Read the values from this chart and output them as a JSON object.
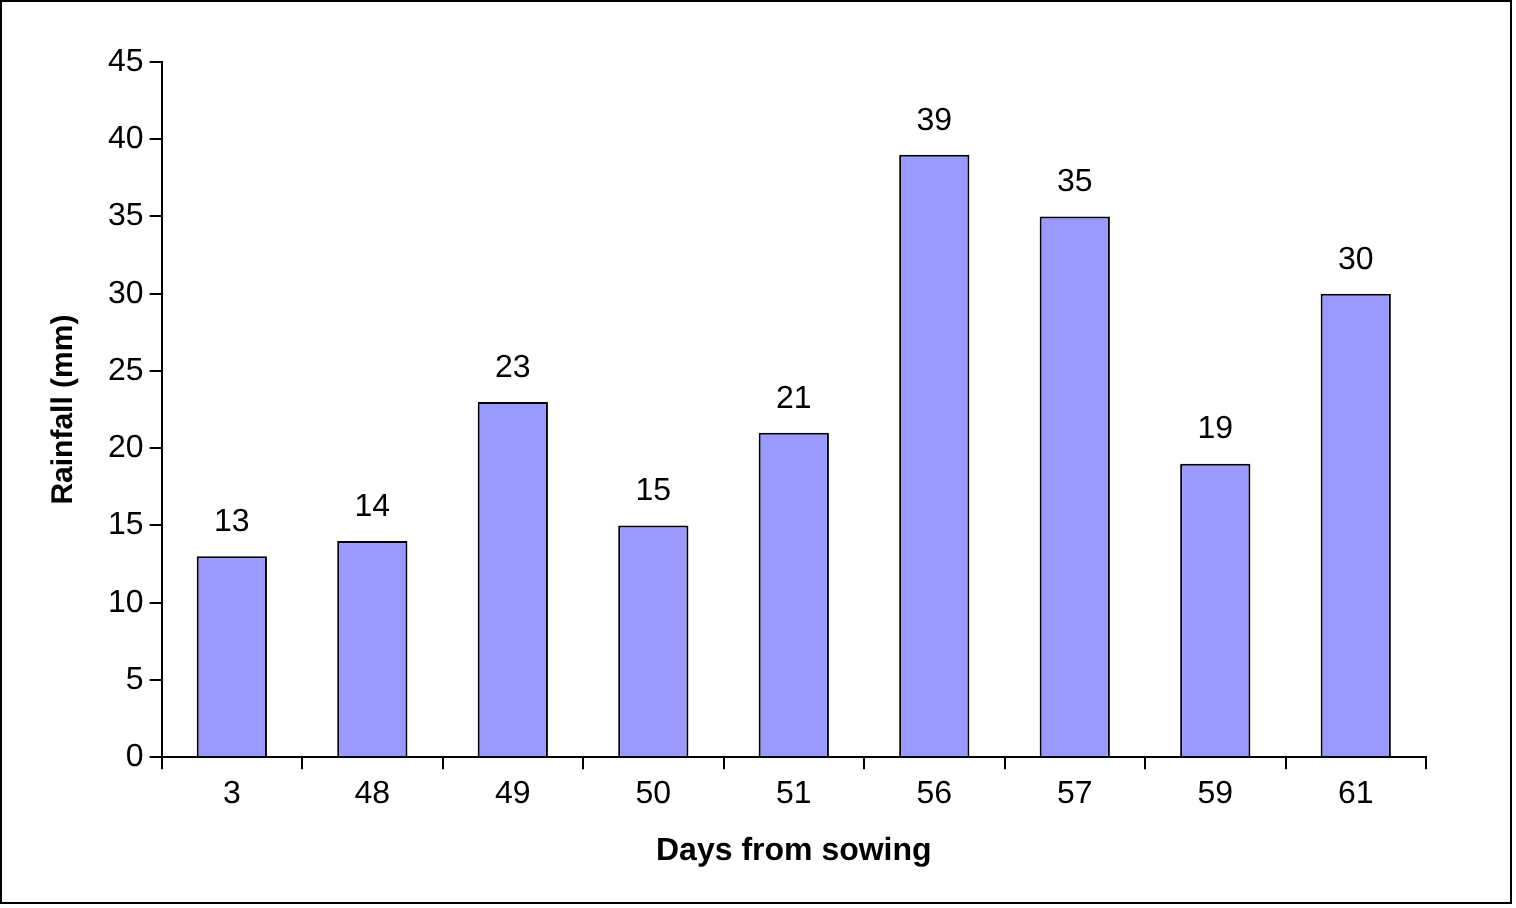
{
  "chart_data": {
    "type": "bar",
    "xlabel": "Days from sowing",
    "ylabel": "Rainfall (mm)",
    "categories": [
      "3",
      "48",
      "49",
      "50",
      "51",
      "56",
      "57",
      "59",
      "61"
    ],
    "values": [
      13,
      14,
      23,
      15,
      21,
      39,
      35,
      19,
      30
    ],
    "color": "#9999ff",
    "ylim": [
      0,
      45
    ],
    "yticks": [
      0,
      5,
      10,
      15,
      20,
      25,
      30,
      35,
      40,
      45
    ],
    "grid": false,
    "data_labels": true,
    "legend": false
  }
}
